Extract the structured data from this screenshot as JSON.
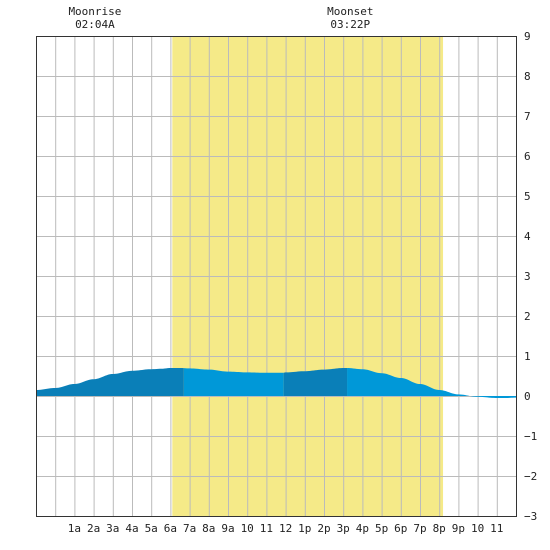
{
  "chart_data": {
    "type": "area",
    "title": "",
    "xlabel": "",
    "ylabel": "",
    "x_range_hours": [
      -1,
      24
    ],
    "ylim": [
      -3,
      9
    ],
    "grid": true,
    "y_axis_position": "right",
    "x_ticks": [
      {
        "hour": 1,
        "label": "1a"
      },
      {
        "hour": 2,
        "label": "2a"
      },
      {
        "hour": 3,
        "label": "3a"
      },
      {
        "hour": 4,
        "label": "4a"
      },
      {
        "hour": 5,
        "label": "5a"
      },
      {
        "hour": 6,
        "label": "6a"
      },
      {
        "hour": 7,
        "label": "7a"
      },
      {
        "hour": 8,
        "label": "8a"
      },
      {
        "hour": 9,
        "label": "9a"
      },
      {
        "hour": 10,
        "label": "10"
      },
      {
        "hour": 11,
        "label": "11"
      },
      {
        "hour": 12,
        "label": "12"
      },
      {
        "hour": 13,
        "label": "1p"
      },
      {
        "hour": 14,
        "label": "2p"
      },
      {
        "hour": 15,
        "label": "3p"
      },
      {
        "hour": 16,
        "label": "4p"
      },
      {
        "hour": 17,
        "label": "5p"
      },
      {
        "hour": 18,
        "label": "6p"
      },
      {
        "hour": 19,
        "label": "7p"
      },
      {
        "hour": 20,
        "label": "8p"
      },
      {
        "hour": 21,
        "label": "9p"
      },
      {
        "hour": 22,
        "label": "10"
      },
      {
        "hour": 23,
        "label": "11"
      }
    ],
    "y_ticks": [
      {
        "value": 9,
        "label": "9"
      },
      {
        "value": 8,
        "label": "8"
      },
      {
        "value": 7,
        "label": "7"
      },
      {
        "value": 6,
        "label": "6"
      },
      {
        "value": 5,
        "label": "5"
      },
      {
        "value": 4,
        "label": "4"
      },
      {
        "value": 3,
        "label": "3"
      },
      {
        "value": 2,
        "label": "2"
      },
      {
        "value": 1,
        "label": "1"
      },
      {
        "value": 0,
        "label": "0"
      },
      {
        "value": -1,
        "label": "−1"
      },
      {
        "value": -2,
        "label": "−2"
      },
      {
        "value": -3,
        "label": "−3"
      }
    ],
    "daylight_band": {
      "start_hour": 6.1,
      "end_hour": 20.2,
      "color": "#f5ea88"
    },
    "moon_events": [
      {
        "name": "Moonrise",
        "time": "02:04A",
        "hour": 2.07
      },
      {
        "name": "Moonset",
        "time": "03:22P",
        "hour": 15.37
      }
    ],
    "series": [
      {
        "x": [
          -1,
          0,
          1,
          2,
          3,
          4,
          5,
          5.5,
          6,
          6.5,
          7,
          8,
          9,
          10,
          11,
          11.9,
          12,
          13,
          14,
          15,
          15.2,
          16,
          17,
          18,
          19,
          20,
          21,
          22,
          23,
          23.5,
          24
        ],
        "y": [
          0.15,
          0.2,
          0.3,
          0.42,
          0.55,
          0.63,
          0.67,
          0.68,
          0.7,
          0.7,
          0.69,
          0.66,
          0.61,
          0.59,
          0.58,
          0.58,
          0.59,
          0.62,
          0.66,
          0.7,
          0.7,
          0.67,
          0.57,
          0.45,
          0.3,
          0.15,
          0.04,
          -0.02,
          -0.05,
          -0.05,
          -0.04
        ]
      }
    ],
    "fill_segments": [
      {
        "from_hour": -1,
        "to_hour": 6.7,
        "color": "#0a7fb8"
      },
      {
        "from_hour": 6.7,
        "to_hour": 11.9,
        "color": "#0098d8"
      },
      {
        "from_hour": 11.9,
        "to_hour": 15.2,
        "color": "#0a7fb8"
      },
      {
        "from_hour": 15.2,
        "to_hour": 24,
        "color": "#0098d8"
      }
    ],
    "colors": {
      "grid": "#bbbbbb",
      "axis": "#333333",
      "background": "#ffffff",
      "text": "#222222"
    }
  }
}
